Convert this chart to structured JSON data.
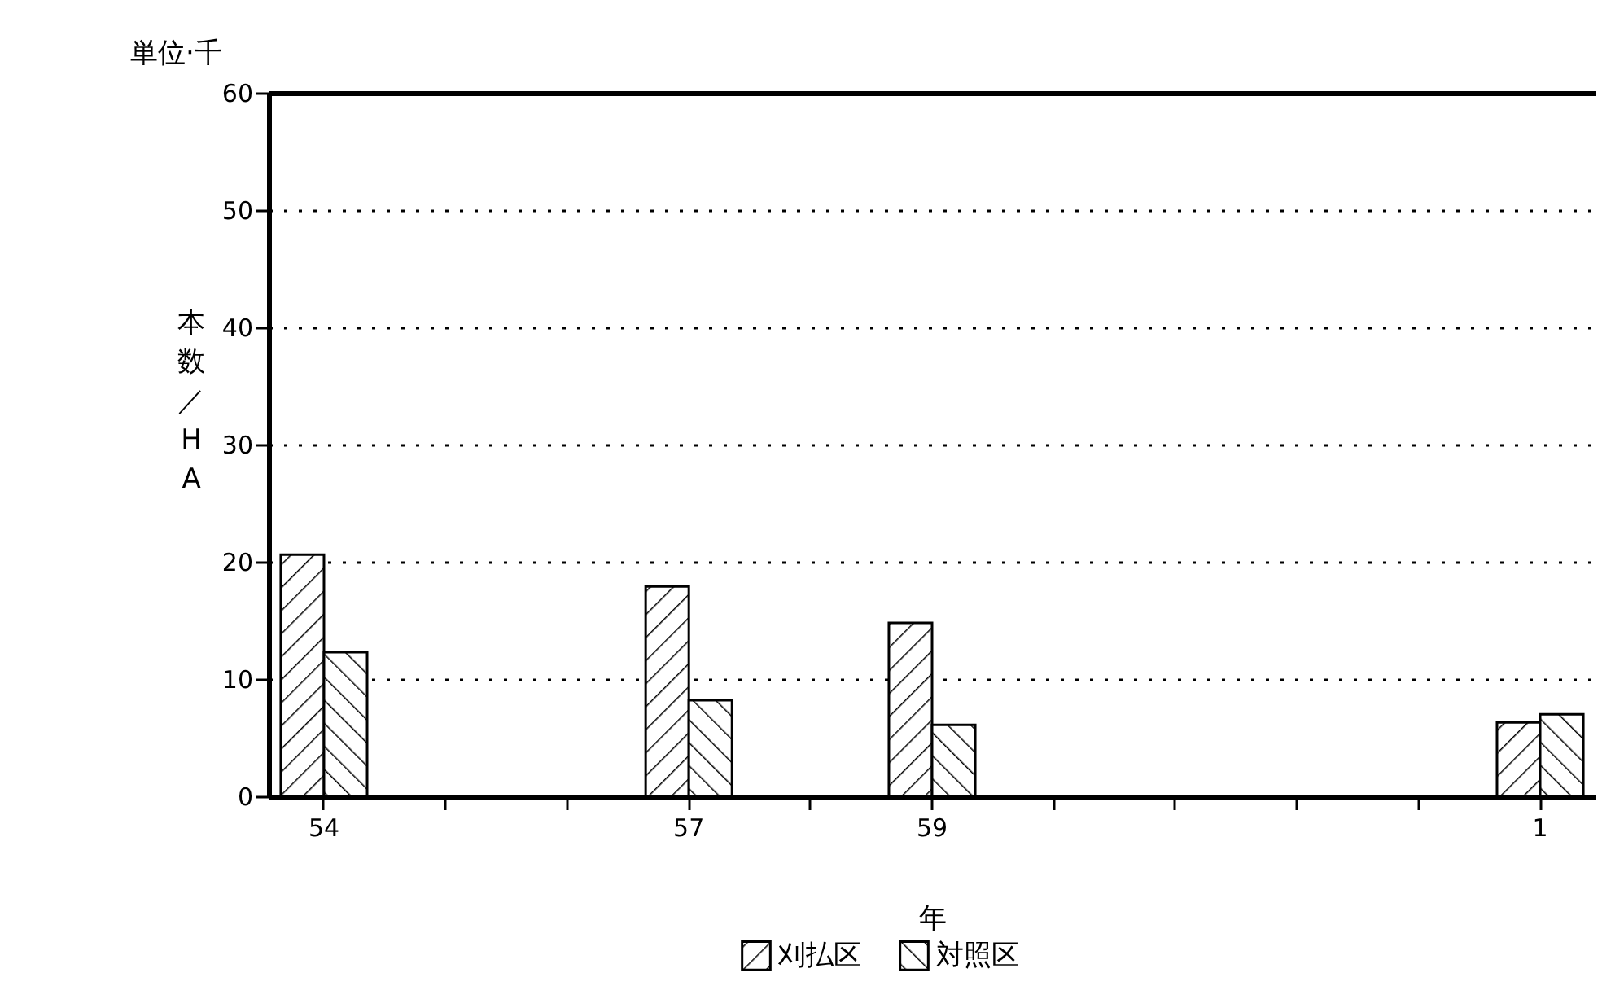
{
  "chart_data": {
    "type": "bar",
    "categories": [
      "54",
      null,
      null,
      "57",
      null,
      "59",
      null,
      null,
      null,
      null,
      "1"
    ],
    "series": [
      {
        "name": "刈払区",
        "color": "#000000",
        "values": [
          20.6,
          null,
          null,
          17.9,
          null,
          14.8,
          null,
          null,
          null,
          null,
          6.3
        ]
      },
      {
        "name": "対照区",
        "color": "#000000",
        "values": [
          12.3,
          null,
          null,
          8.2,
          null,
          6.1,
          null,
          null,
          null,
          null,
          7.0
        ]
      }
    ],
    "xlabel": "年",
    "ylabel": "本数／HA",
    "annotations": [
      "単位·千"
    ],
    "ylim": [
      0,
      60
    ],
    "yticks": [
      0,
      10,
      20,
      30,
      40,
      50,
      60
    ],
    "grid": "y",
    "legend": "bottom"
  }
}
